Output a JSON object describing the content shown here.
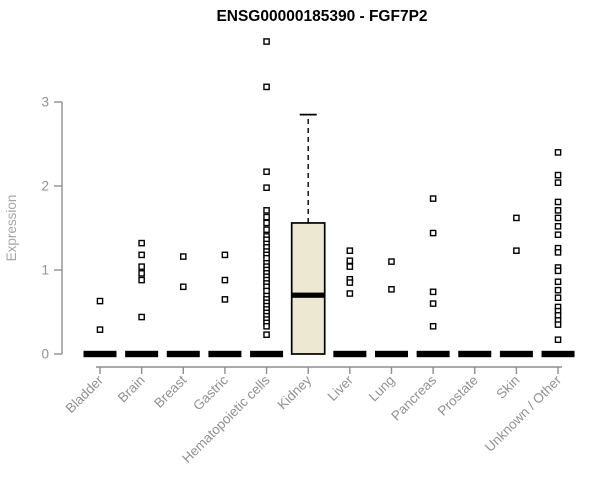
{
  "chart_data": {
    "type": "boxplot",
    "title": "ENSG00000185390 - FGF7P2",
    "xlabel": "",
    "ylabel": "Expression",
    "ylim": [
      0,
      3.9
    ],
    "yticks": [
      0,
      1,
      2,
      3
    ],
    "grid": false,
    "legend": "none",
    "categories": [
      "Bladder",
      "Brain",
      "Breast",
      "Gastric",
      "Hematopoietic cells",
      "Kidney",
      "Liver",
      "Lung",
      "Pancreas",
      "Prostate",
      "Skin",
      "Unknown / Other"
    ],
    "boxes": [
      {
        "category": "Bladder",
        "median": 0,
        "q1": 0,
        "q3": 0,
        "whisker_low": 0,
        "whisker_high": 0,
        "points": [
          0.63,
          0.29
        ]
      },
      {
        "category": "Brain",
        "median": 0,
        "q1": 0,
        "q3": 0,
        "whisker_low": 0,
        "whisker_high": 0,
        "points": [
          1.32,
          1.18,
          1.04,
          0.96,
          0.88,
          0.44
        ]
      },
      {
        "category": "Breast",
        "median": 0,
        "q1": 0,
        "q3": 0,
        "whisker_low": 0,
        "whisker_high": 0,
        "points": [
          1.16,
          0.8
        ]
      },
      {
        "category": "Gastric",
        "median": 0,
        "q1": 0,
        "q3": 0,
        "whisker_low": 0,
        "whisker_high": 0,
        "points": [
          1.18,
          0.88,
          0.65
        ]
      },
      {
        "category": "Hematopoietic cells",
        "median": 0,
        "q1": 0,
        "q3": 0,
        "whisker_low": 0,
        "whisker_high": 0,
        "points": [
          3.72,
          3.18,
          2.17,
          1.98,
          1.71,
          1.63,
          1.56,
          1.48,
          1.4,
          1.36,
          1.31,
          1.27,
          1.22,
          1.18,
          1.14,
          1.08,
          1.04,
          1.0,
          0.96,
          0.92,
          0.88,
          0.84,
          0.8,
          0.75,
          0.69,
          0.65,
          0.61,
          0.57,
          0.53,
          0.49,
          0.45,
          0.41,
          0.37,
          0.33,
          0.23
        ]
      },
      {
        "category": "Kidney",
        "median": 0.7,
        "q1": 0,
        "q3": 1.56,
        "whisker_low": 0,
        "whisker_high": 2.85,
        "points": []
      },
      {
        "category": "Liver",
        "median": 0,
        "q1": 0,
        "q3": 0,
        "whisker_low": 0,
        "whisker_high": 0,
        "points": [
          1.23,
          1.11,
          1.04,
          0.89,
          0.85,
          0.72
        ]
      },
      {
        "category": "Lung",
        "median": 0,
        "q1": 0,
        "q3": 0,
        "whisker_low": 0,
        "whisker_high": 0,
        "points": [
          1.1,
          0.77
        ]
      },
      {
        "category": "Pancreas",
        "median": 0,
        "q1": 0,
        "q3": 0,
        "whisker_low": 0,
        "whisker_high": 0,
        "points": [
          1.85,
          1.44,
          0.74,
          0.6,
          0.33
        ]
      },
      {
        "category": "Prostate",
        "median": 0,
        "q1": 0,
        "q3": 0,
        "whisker_low": 0,
        "whisker_high": 0,
        "points": []
      },
      {
        "category": "Skin",
        "median": 0,
        "q1": 0,
        "q3": 0,
        "whisker_low": 0,
        "whisker_high": 0,
        "points": [
          1.62,
          1.23
        ]
      },
      {
        "category": "Unknown / Other",
        "median": 0,
        "q1": 0,
        "q3": 0,
        "whisker_low": 0,
        "whisker_high": 0,
        "points": [
          2.4,
          2.13,
          2.04,
          1.81,
          1.71,
          1.62,
          1.52,
          1.42,
          1.26,
          1.21,
          1.03,
          0.99,
          0.86,
          0.76,
          0.67,
          0.56,
          0.51,
          0.46,
          0.4,
          0.35,
          0.17
        ]
      }
    ],
    "colors": {
      "title": "#000000",
      "axis_line": "#8F8F8F",
      "tick_label": "#919191",
      "axis_label": "#A6A6A6",
      "box_fill": "#EDE8D1",
      "box_stroke": "#000000",
      "median_color": "#000000",
      "point_stroke": "#000000",
      "point_fill": "#FFFFFF",
      "background": "#FFFFFF"
    }
  }
}
